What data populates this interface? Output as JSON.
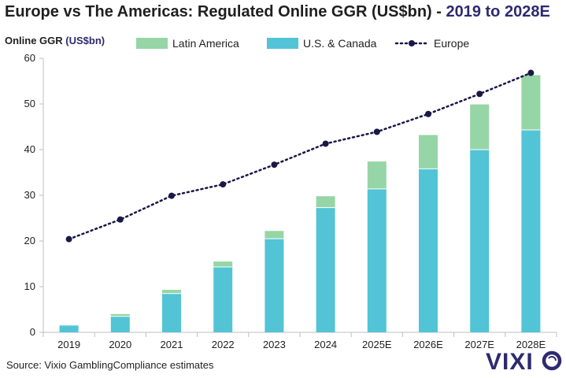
{
  "title_main": "Europe vs The Americas: Regulated Online GGR (US$bn) - ",
  "title_highlight": "2019 to 2028E",
  "ylabel_main": "Online GGR ",
  "ylabel_unit": "(US$bn)",
  "source": "Source: Vixio GamblingCompliance estimates",
  "logo_text": "VIXIO",
  "colors": {
    "latin_america": "#96d5a6",
    "us_canada": "#52c4d6",
    "europe": "#1b1746",
    "axis": "#bfbfbf",
    "accent": "#2e2a6e"
  },
  "chart_data": {
    "type": "bar",
    "stacked": true,
    "categories": [
      "2019",
      "2020",
      "2021",
      "2022",
      "2023",
      "2024",
      "2025E",
      "2026E",
      "2027E",
      "2028E"
    ],
    "series": [
      {
        "name": "U.S. & Canada",
        "kind": "bar",
        "values": [
          1.5,
          3.5,
          8.5,
          14.3,
          20.5,
          27.3,
          31.4,
          35.8,
          40.0,
          44.3
        ]
      },
      {
        "name": "Latin America",
        "kind": "bar",
        "values": [
          0,
          0.5,
          0.8,
          1.2,
          1.7,
          2.5,
          6.0,
          7.4,
          9.9,
          12.0
        ]
      },
      {
        "name": "Europe",
        "kind": "line",
        "values": [
          20.4,
          24.7,
          29.9,
          32.4,
          36.7,
          41.3,
          43.9,
          47.8,
          52.2,
          56.8
        ]
      }
    ],
    "legend": [
      "Latin America",
      "U.S. & Canada",
      "Europe"
    ],
    "legend_position": "top",
    "yticks": [
      "0",
      "10",
      "20",
      "30",
      "40",
      "50",
      "60"
    ],
    "ylim": [
      0,
      60
    ],
    "grid": false
  }
}
